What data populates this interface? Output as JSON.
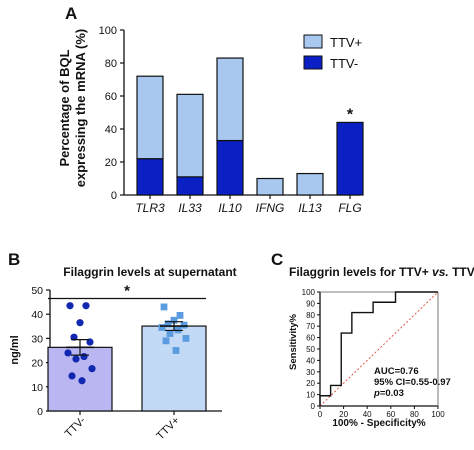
{
  "panels": {
    "a": {
      "letter": "A"
    },
    "b": {
      "letter": "B"
    },
    "c": {
      "letter": "C"
    }
  },
  "chart_data": [
    {
      "panel": "A",
      "type": "bar",
      "stacked": true,
      "ylabel": "Percentage of BQL expressing the mRNA (%)",
      "ylabel_line1": "Percentage of BQL",
      "ylabel_line2": "expressing the mRNA (%)",
      "ylim": [
        0,
        100
      ],
      "yticks": [
        "0",
        "20",
        "40",
        "60",
        "80",
        "100"
      ],
      "categories": [
        "TLR3",
        "IL33",
        "IL10",
        "IFNG",
        "IL13",
        "FLG"
      ],
      "series": [
        {
          "name": "TTV-",
          "color": "#0a1fc4",
          "values": [
            22,
            11,
            33,
            0,
            0,
            44
          ]
        },
        {
          "name": "TTV+",
          "color": "#a8c8f0",
          "values": [
            50,
            50,
            50,
            10,
            13,
            0
          ]
        }
      ],
      "legend": {
        "placement": "top-right",
        "entries": [
          "TTV+",
          "TTV-"
        ]
      },
      "annotations": [
        {
          "text": "*",
          "category": "FLG"
        }
      ]
    },
    {
      "panel": "B",
      "type": "bar",
      "title": "Filaggrin levels at supernatant",
      "ylabel": "ng/ml",
      "ylim": [
        0,
        50
      ],
      "yticks": [
        "0",
        "10",
        "20",
        "30",
        "40",
        "50"
      ],
      "categories": [
        "TTV-",
        "TTV+"
      ],
      "colors": {
        "TTV-": "#b9b6f2",
        "TTV+": "#c2daf6"
      },
      "point_colors": {
        "TTV-": "#1228b0",
        "TTV+": "#5b9be0"
      },
      "means": [
        26.3,
        35.1
      ],
      "sem": [
        3.2,
        1.8
      ],
      "points": [
        [
          43.5,
          43.5,
          36.5,
          30.5,
          28.5,
          24.0,
          22.5,
          21.5,
          17.5,
          14.5,
          12.5
        ],
        [
          43.0,
          39.5,
          37.5,
          36.0,
          35.5,
          34.5,
          33.5,
          32.0,
          30.0,
          29.0,
          25.0
        ]
      ],
      "significance": "*"
    },
    {
      "panel": "C",
      "type": "line",
      "title_part1": "Filaggrin levels for TTV+ ",
      "title_vs": "vs.",
      "title_part2": " TTV-",
      "xlabel": "100% - Specificity%",
      "ylabel": "Sensitivity%",
      "xlim": [
        0,
        100
      ],
      "ylim": [
        0,
        100
      ],
      "xticks": [
        "0",
        "20",
        "40",
        "60",
        "80",
        "100"
      ],
      "yticks": [
        "0",
        "10",
        "20",
        "30",
        "40",
        "50",
        "60",
        "70",
        "80",
        "90",
        "100"
      ],
      "series": [
        {
          "name": "ROC",
          "x": [
            0,
            0,
            9,
            9,
            18,
            18,
            27,
            27,
            45,
            45,
            64,
            64,
            100
          ],
          "y": [
            0,
            9,
            9,
            18,
            18,
            64,
            64,
            82,
            82,
            91,
            91,
            100,
            100
          ]
        }
      ],
      "reference_line": {
        "x": [
          0,
          100
        ],
        "y": [
          0,
          100
        ],
        "color": "#e05a4a",
        "dashed": true
      },
      "stats": {
        "auc": "AUC=0.76",
        "ci": "95% CI=0.55-0.97",
        "p_italic": "p",
        "p_rest": "=0.03"
      }
    }
  ]
}
